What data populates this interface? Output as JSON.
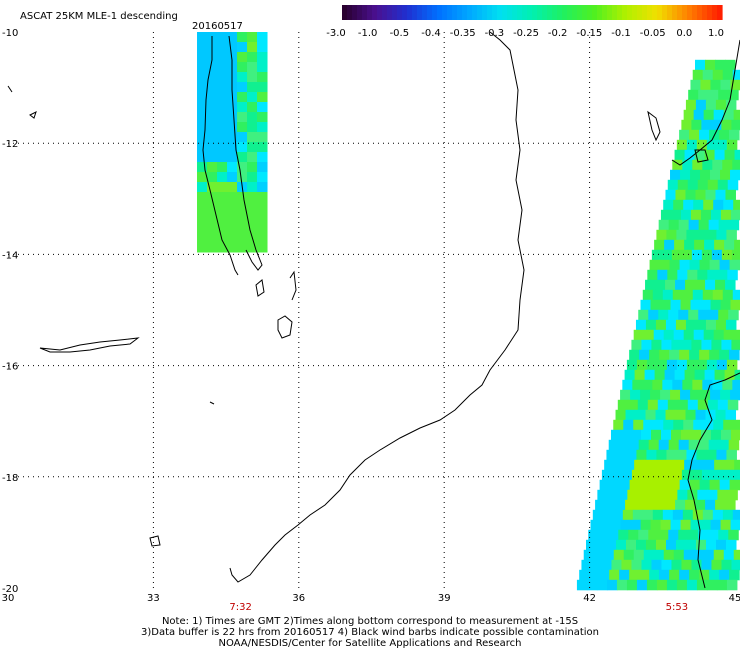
{
  "title": "ASCAT 25KM MLE-1 descending",
  "date": "20160517",
  "colorbar": {
    "labels": [
      "-3.0",
      "-1.0",
      "-0.5",
      "-0.4",
      "-0.35",
      "-0.3",
      "-0.25",
      "-0.2",
      "-0.15",
      "-0.1",
      "-0.05",
      "0.0",
      "1.0"
    ],
    "colors": [
      "#2a0030",
      "#4a1090",
      "#2030d0",
      "#0070ff",
      "#00a8ff",
      "#00e0f0",
      "#00f0b0",
      "#20f060",
      "#50f020",
      "#b0f000",
      "#f0e000",
      "#ff8000",
      "#ff2000"
    ]
  },
  "axes": {
    "lon_ticks": [
      "30",
      "33",
      "36",
      "39",
      "42",
      "45"
    ],
    "lat_ticks": [
      "-10",
      "-12",
      "-14",
      "-16",
      "-18",
      "-20"
    ]
  },
  "time_labels": [
    {
      "text": "7:32",
      "lon": 34.8
    },
    {
      "text": "5:53",
      "lon": 43.8
    }
  ],
  "notes": {
    "line1": "Note: 1) Times are GMT 2)Times along bottom correspond to measurement at -15S",
    "line2": "3)Data buffer is 22 hrs from 20160517 4) Black wind barbs indicate possible contamination",
    "line3": "NOAA/NESDIS/Center for Satellite Applications and Research"
  },
  "chart_data": {
    "type": "heatmap",
    "title": "ASCAT 25KM MLE-1 descending",
    "x_range": [
      30,
      45
    ],
    "y_range": [
      -20,
      -10
    ],
    "swaths": [
      {
        "name": "7:32",
        "lon_range": [
          33.9,
          35.2
        ],
        "lat_range": [
          -13.9,
          -10.0
        ]
      },
      {
        "name": "5:53",
        "lon_range": [
          41.7,
          45.0
        ],
        "lat_range": [
          -20.0,
          -10.5
        ]
      }
    ]
  }
}
